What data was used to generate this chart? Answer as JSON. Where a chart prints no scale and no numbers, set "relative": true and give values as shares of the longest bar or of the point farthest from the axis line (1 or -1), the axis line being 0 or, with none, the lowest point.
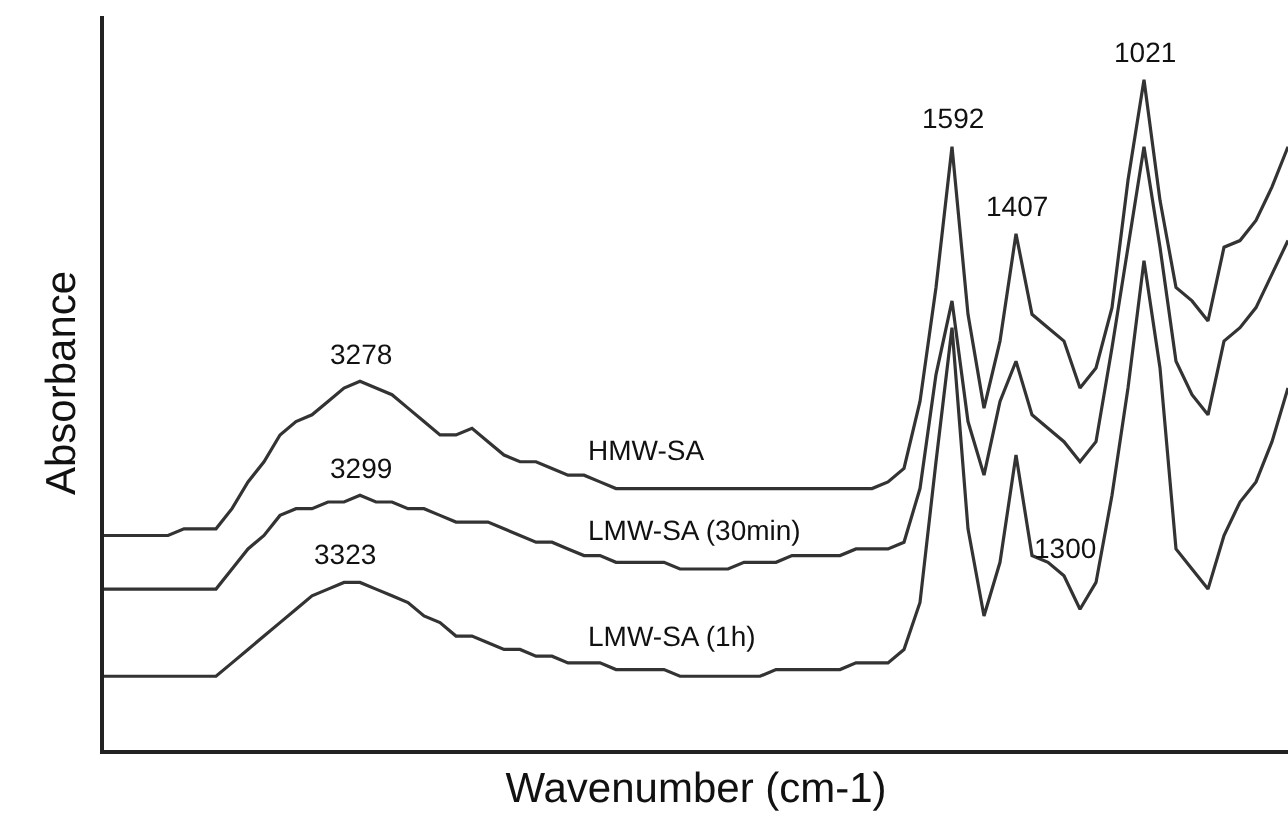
{
  "chart_data": {
    "type": "line",
    "xlabel": "Wavenumber (cm-1)",
    "ylabel": "Absorbance",
    "relative": true,
    "categories": [
      null,
      null,
      null,
      null,
      null,
      null,
      null,
      null,
      null,
      null,
      null,
      null,
      null,
      null,
      null,
      null,
      null,
      null,
      null,
      null,
      null,
      null,
      null,
      null,
      null,
      null,
      null,
      null,
      null,
      null,
      null,
      null,
      null,
      null,
      null,
      null,
      null,
      null,
      null,
      null,
      null,
      null,
      null,
      null,
      null,
      null,
      null,
      null,
      null,
      null,
      null,
      null,
      null,
      null,
      null,
      null,
      null,
      null,
      null,
      null,
      null,
      null,
      null,
      null,
      null,
      null,
      null,
      null,
      null,
      null,
      null,
      null,
      null,
      null,
      null
    ],
    "series": [
      {
        "name": "HMW-SA",
        "color": "#333333",
        "values": [
          0.32,
          0.32,
          0.32,
          0.32,
          0.32,
          0.33,
          0.33,
          0.33,
          0.36,
          0.4,
          0.43,
          0.47,
          0.49,
          0.5,
          0.52,
          0.54,
          0.55,
          0.54,
          0.53,
          0.51,
          0.49,
          0.47,
          0.47,
          0.48,
          0.46,
          0.44,
          0.43,
          0.43,
          0.42,
          0.41,
          0.41,
          0.4,
          0.39,
          0.39,
          0.39,
          0.39,
          0.39,
          0.39,
          0.39,
          0.39,
          0.39,
          0.39,
          0.39,
          0.39,
          0.39,
          0.39,
          0.39,
          0.39,
          0.39,
          0.4,
          0.42,
          0.52,
          0.69,
          0.9,
          0.65,
          0.51,
          0.61,
          0.77,
          0.65,
          0.63,
          0.61,
          0.54,
          0.57,
          0.66,
          0.85,
          1,
          0.82,
          0.69,
          0.67,
          0.64,
          0.75,
          0.76,
          0.79,
          0.84,
          0.9
        ]
      },
      {
        "name": "LMW-SA (30min)",
        "color": "#333333",
        "values": [
          0.24,
          0.24,
          0.24,
          0.24,
          0.24,
          0.24,
          0.24,
          0.24,
          0.27,
          0.3,
          0.32,
          0.35,
          0.36,
          0.36,
          0.37,
          0.37,
          0.38,
          0.37,
          0.37,
          0.36,
          0.36,
          0.35,
          0.34,
          0.34,
          0.34,
          0.33,
          0.32,
          0.31,
          0.31,
          0.3,
          0.29,
          0.29,
          0.28,
          0.28,
          0.28,
          0.28,
          0.27,
          0.27,
          0.27,
          0.27,
          0.28,
          0.28,
          0.28,
          0.29,
          0.29,
          0.29,
          0.29,
          0.3,
          0.3,
          0.3,
          0.31,
          0.39,
          0.56,
          0.67,
          0.49,
          0.41,
          0.52,
          0.58,
          0.5,
          0.48,
          0.46,
          0.43,
          0.46,
          0.6,
          0.75,
          0.9,
          0.75,
          0.58,
          0.53,
          0.5,
          0.61,
          0.63,
          0.66,
          0.71,
          0.76
        ]
      },
      {
        "name": "LMW-SA (1h)",
        "color": "#333333",
        "values": [
          0.11,
          0.11,
          0.11,
          0.11,
          0.11,
          0.11,
          0.11,
          0.11,
          0.13,
          0.15,
          0.17,
          0.19,
          0.21,
          0.23,
          0.24,
          0.25,
          0.25,
          0.24,
          0.23,
          0.22,
          0.2,
          0.19,
          0.17,
          0.17,
          0.16,
          0.15,
          0.15,
          0.14,
          0.14,
          0.13,
          0.13,
          0.13,
          0.12,
          0.12,
          0.12,
          0.12,
          0.11,
          0.11,
          0.11,
          0.11,
          0.11,
          0.11,
          0.12,
          0.12,
          0.12,
          0.12,
          0.12,
          0.13,
          0.13,
          0.13,
          0.15,
          0.22,
          0.43,
          0.63,
          0.33,
          0.2,
          0.28,
          0.44,
          0.29,
          0.28,
          0.26,
          0.21,
          0.25,
          0.38,
          0.54,
          0.73,
          0.57,
          0.3,
          0.27,
          0.24,
          0.32,
          0.37,
          0.4,
          0.46,
          0.54
        ]
      }
    ],
    "annotations": [
      {
        "text": "3278",
        "y": 0.55
      },
      {
        "text": "3299",
        "y": 0.38
      },
      {
        "text": "3323",
        "y": 0.25
      },
      {
        "text": "1592",
        "y": 0.9
      },
      {
        "text": "1407",
        "y": 0.77
      },
      {
        "text": "1021",
        "y": 1
      },
      {
        "text": "1300",
        "y": 0.26
      }
    ]
  }
}
